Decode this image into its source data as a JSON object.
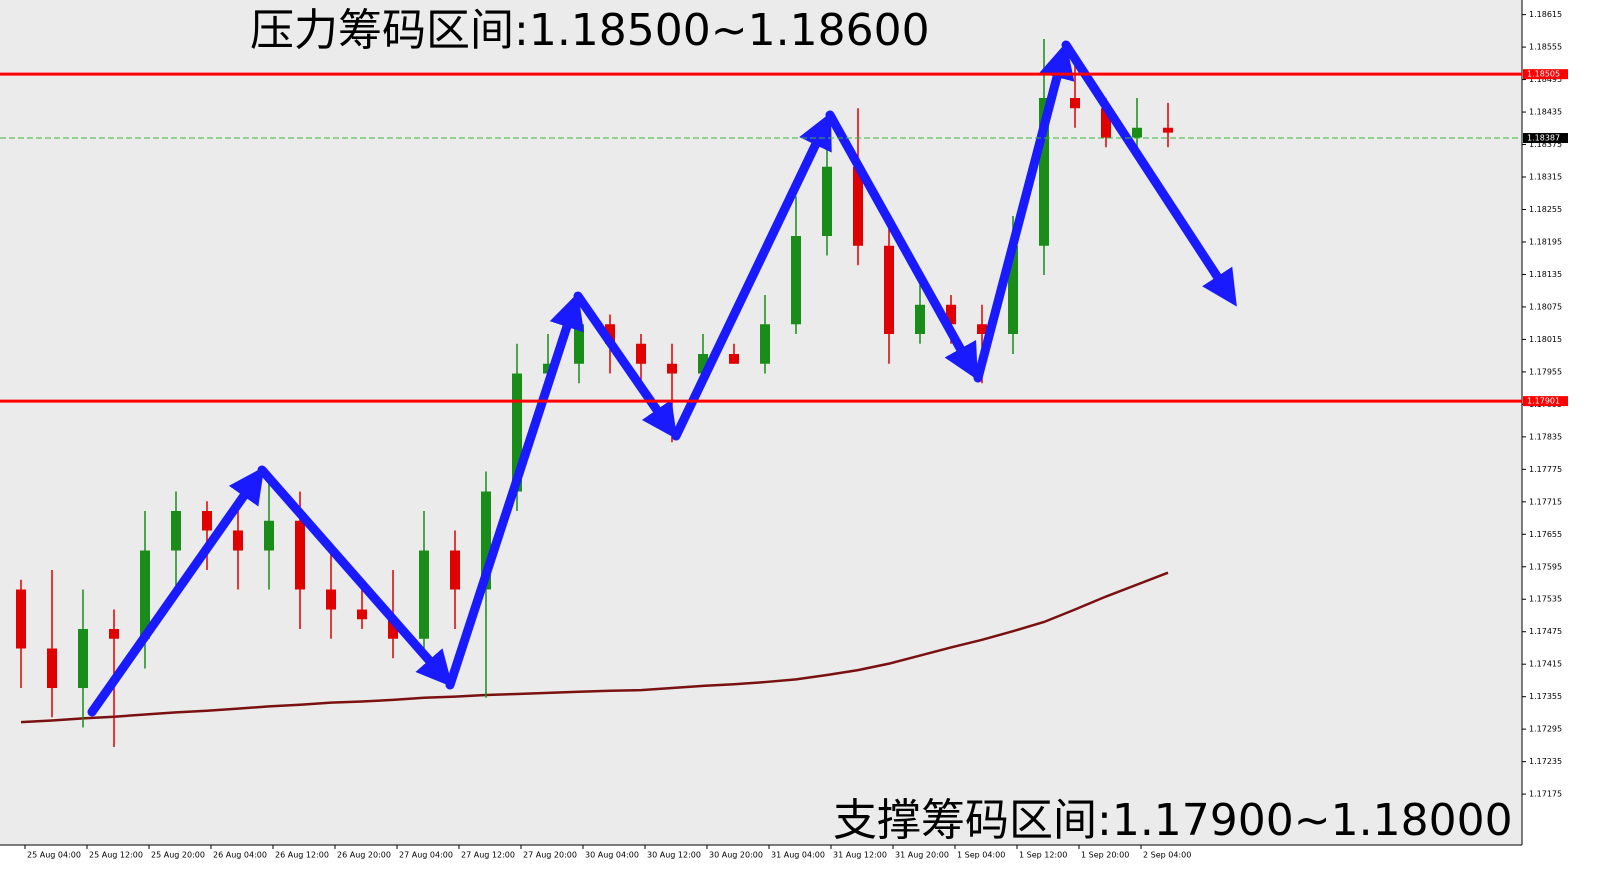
{
  "chart_data": {
    "type": "candlestick",
    "title": "压力筹码区间:1.18500~1.18600",
    "subtitle": "支撑筹码区间:1.17900~1.18000",
    "categories": [
      null,
      "25 Aug 04:00",
      null,
      "25 Aug 12:00",
      null,
      "25 Aug 20:00",
      null,
      "26 Aug 04:00",
      null,
      "26 Aug 12:00",
      null,
      "26 Aug 20:00",
      null,
      "27 Aug 04:00",
      null,
      "27 Aug 12:00",
      null,
      "27 Aug 20:00",
      null,
      "30 Aug 04:00",
      null,
      "30 Aug 12:00",
      null,
      "30 Aug 20:00",
      null,
      "31 Aug 04:00",
      null,
      "31 Aug 12:00",
      null,
      "31 Aug 20:00",
      null,
      "1 Sep 04:00",
      null,
      "1 Sep 12:00",
      null,
      "1 Sep 20:00",
      null,
      "2 Sep 04:00"
    ],
    "open": [
      1.17553,
      1.17444,
      1.17371,
      1.1748,
      1.17462,
      1.17625,
      1.17698,
      1.17662,
      1.17625,
      1.1768,
      1.17553,
      1.17516,
      1.17498,
      1.17462,
      1.17625,
      1.17553,
      1.17734,
      1.17952,
      1.1797,
      1.18043,
      1.18007,
      1.1797,
      1.17952,
      1.17988,
      1.1797,
      1.18043,
      1.18206,
      1.18334,
      1.18188,
      1.18025,
      1.18079,
      1.18043,
      1.18025,
      1.18188,
      1.18461,
      1.18442,
      1.18388,
      1.18406
    ],
    "high": [
      1.17571,
      1.17589,
      1.17553,
      1.17516,
      1.17698,
      1.17734,
      1.17716,
      1.17698,
      1.17771,
      1.17734,
      1.17625,
      1.17571,
      1.17589,
      1.17698,
      1.17662,
      1.17771,
      1.18007,
      1.18025,
      1.18079,
      1.18061,
      1.18025,
      1.18007,
      1.18025,
      1.18007,
      1.18097,
      1.18279,
      1.18424,
      1.18442,
      1.18225,
      1.18116,
      1.18097,
      1.18079,
      1.18243,
      1.1857,
      1.18533,
      1.18461,
      1.18461,
      1.18452
    ],
    "low": [
      1.17371,
      1.17317,
      1.17298,
      1.17262,
      1.17407,
      1.17553,
      1.17589,
      1.17553,
      1.17553,
      1.1748,
      1.17462,
      1.1748,
      1.17426,
      1.17444,
      1.1748,
      1.17353,
      1.17698,
      1.17916,
      1.17934,
      1.17952,
      1.17916,
      1.17825,
      1.17952,
      1.1797,
      1.17952,
      1.18025,
      1.1817,
      1.18152,
      1.1797,
      1.18007,
      1.18007,
      1.17934,
      1.17988,
      1.18134,
      1.18406,
      1.1837,
      1.1837,
      1.1837
    ],
    "close": [
      1.17444,
      1.17371,
      1.1748,
      1.17462,
      1.17625,
      1.17698,
      1.17662,
      1.17625,
      1.1768,
      1.17553,
      1.17516,
      1.17498,
      1.17462,
      1.17625,
      1.17553,
      1.17734,
      1.17952,
      1.1797,
      1.18043,
      1.18007,
      1.1797,
      1.17952,
      1.17988,
      1.1797,
      1.18043,
      1.18206,
      1.18334,
      1.18188,
      1.18025,
      1.18079,
      1.18043,
      1.18025,
      1.18188,
      1.18461,
      1.18442,
      1.18388,
      1.18406,
      1.18397
    ],
    "up_color": "#1a8c1a",
    "down_color": "#e00000",
    "overlays": [
      {
        "color": "#7a1010",
        "values": [
          1.17308,
          1.17311,
          1.17315,
          1.17318,
          1.17322,
          1.17326,
          1.17329,
          1.17333,
          1.17337,
          1.1734,
          1.17344,
          1.17346,
          1.17349,
          1.17353,
          1.17355,
          1.17358,
          1.1736,
          1.17362,
          1.17364,
          1.17366,
          1.17367,
          1.17371,
          1.17375,
          1.17378,
          1.17382,
          1.17387,
          1.17395,
          1.17404,
          1.17416,
          1.17431,
          1.17446,
          1.1746,
          1.17476,
          1.17493,
          1.17516,
          1.1754,
          1.17562,
          1.17584
        ]
      }
    ],
    "price_lines": [
      1.18505,
      1.17901
    ],
    "price_line_color": "#ff0000",
    "current_price": 1.18387,
    "ylim": [
      1.17081,
      1.18642
    ],
    "yticks": [
      1.18615,
      1.18555,
      1.18495,
      1.18435,
      1.18375,
      1.18315,
      1.18255,
      1.18195,
      1.18135,
      1.18075,
      1.18015,
      1.17955,
      1.17895,
      1.17835,
      1.17775,
      1.17715,
      1.17655,
      1.17595,
      1.17535,
      1.17475,
      1.17415,
      1.17355,
      1.17295,
      1.17235,
      1.17175
    ]
  }
}
